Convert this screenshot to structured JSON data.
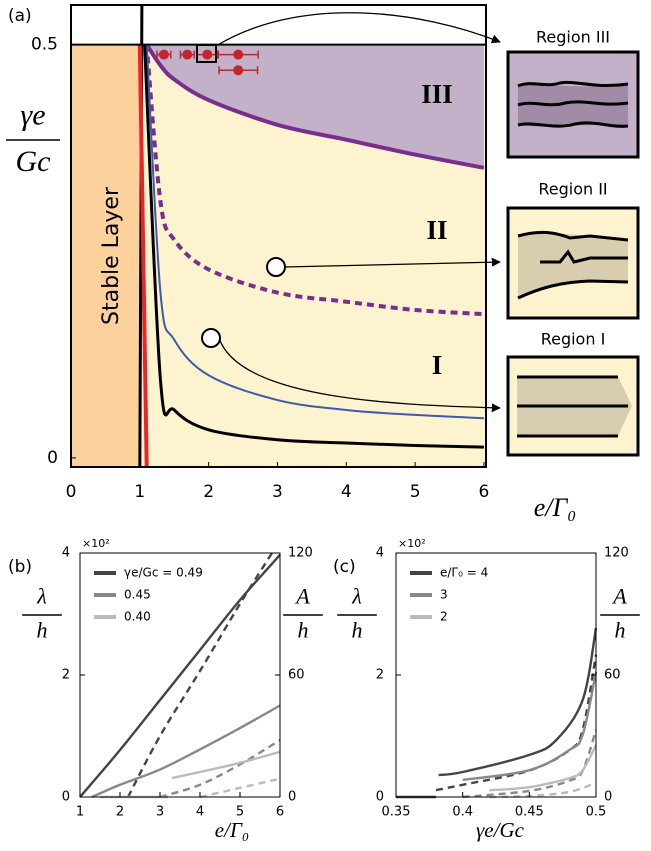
{
  "chart_data": [
    {
      "type": "line",
      "panel_label": "(a)",
      "xlabel": "e/Γ₀",
      "ylabel": [
        "γe",
        "Gc"
      ],
      "xlim": [
        0,
        6.03
      ],
      "ylim": [
        -0.011,
        0.548
      ],
      "xticks": [
        0,
        1,
        2,
        3,
        4,
        5,
        6
      ],
      "yticks": [
        0,
        0.5
      ],
      "stable_label": "Stable Layer",
      "region_labels": [
        "III",
        "II",
        "I"
      ],
      "insets": [
        "Region III",
        "Region II",
        "Region I"
      ],
      "fill_colors": {
        "stable": "#fdd19b",
        "cream": "#fef3cf",
        "region3": "#c3b1c9"
      },
      "series": [
        {
          "color": "#000000",
          "x": [
            1.03,
            1.0
          ],
          "values": [
            0.548,
            -0.011
          ]
        },
        {
          "color": "#e8262a",
          "x": [
            1.0,
            1.1
          ],
          "values": [
            0.5,
            -0.011
          ]
        },
        {
          "color": "#7b2d8e",
          "x": [
            1.1,
            1.3,
            1.5,
            2,
            3,
            4,
            5,
            6
          ],
          "values": [
            0.5,
            0.475,
            0.458,
            0.433,
            0.403,
            0.385,
            0.367,
            0.351
          ]
        },
        {
          "color": "#7b2d8e",
          "dash": true,
          "x": [
            1.1,
            1.3,
            1.5,
            2,
            3,
            4,
            5,
            6
          ],
          "values": [
            0.5,
            0.31,
            0.264,
            0.228,
            0.2,
            0.189,
            0.179,
            0.174
          ]
        },
        {
          "color": "#3c5ba8",
          "x": [
            1.1,
            1.3,
            1.5,
            2,
            3,
            4,
            5,
            6
          ],
          "values": [
            0.5,
            0.2,
            0.143,
            0.1,
            0.07,
            0.058,
            0.052,
            0.048
          ]
        },
        {
          "color": "#000000",
          "x": [
            1.07,
            1.3,
            1.5,
            2,
            3,
            4,
            5,
            6
          ],
          "values": [
            0.5,
            0.094,
            0.058,
            0.034,
            0.022,
            0.018,
            0.015,
            0.013
          ]
        }
      ],
      "points": {
        "color": "#c0262c",
        "x": [
          1.35,
          1.69,
          1.98,
          2.43,
          2.43
        ],
        "values": [
          0.488,
          0.488,
          0.488,
          0.488,
          0.469
        ],
        "xerr": [
          0.1,
          0.1,
          0.15,
          0.29,
          0.28
        ]
      }
    },
    {
      "type": "line",
      "panel_label": "(b)",
      "xlabel": "e/Γ₀",
      "ylabel": [
        "λ",
        "h"
      ],
      "y2label": [
        "A",
        "h"
      ],
      "y_multiplier": "×10²",
      "xlim": [
        1,
        6
      ],
      "ylim": [
        0,
        4
      ],
      "y2lim": [
        0,
        120
      ],
      "xticks": [
        1,
        2,
        3,
        4,
        5,
        6
      ],
      "yticks": [
        0,
        2,
        4
      ],
      "y2ticks": [
        0,
        60,
        120
      ],
      "series": [
        {
          "name": "γe/Gc = 0.49",
          "color": "#444444",
          "x": [
            1,
            2,
            3,
            4,
            5,
            6
          ],
          "values": [
            0,
            0.77,
            1.59,
            2.41,
            3.23,
            3.97
          ]
        },
        {
          "color": "#444444",
          "dash": true,
          "axis": "y2",
          "x": [
            2.2,
            3,
            4,
            5,
            5.8
          ],
          "values": [
            0,
            30,
            62,
            95,
            120
          ]
        },
        {
          "name": "0.45",
          "color": "#888888",
          "x": [
            1.3,
            2,
            3,
            4,
            5,
            6
          ],
          "values": [
            0,
            0.2,
            0.45,
            0.78,
            1.13,
            1.5
          ]
        },
        {
          "color": "#888888",
          "dash": true,
          "axis": "y2",
          "x": [
            3,
            4,
            5,
            6
          ],
          "values": [
            0,
            6,
            16,
            28
          ]
        },
        {
          "name": "0.40",
          "color": "#bbbbbb",
          "x": [
            1.5,
            3.2,
            3.25,
            3.3,
            4,
            5,
            6
          ],
          "values": [
            0,
            0,
            null,
            0.31,
            0.41,
            0.56,
            0.74
          ]
        },
        {
          "color": "#bbbbbb",
          "dash": true,
          "axis": "y2",
          "x": [
            4,
            5,
            6
          ],
          "values": [
            0,
            4.5,
            9
          ]
        }
      ]
    },
    {
      "type": "line",
      "panel_label": "(c)",
      "xlabel": "γe/Gc",
      "ylabel": [
        "λ",
        "h"
      ],
      "y2label": [
        "A",
        "h"
      ],
      "y_multiplier": "×10²",
      "xlim": [
        0.35,
        0.5
      ],
      "ylim": [
        0,
        4
      ],
      "y2lim": [
        0,
        120
      ],
      "xticks": [
        0.35,
        0.4,
        0.45,
        0.5
      ],
      "yticks": [
        0,
        2,
        4
      ],
      "y2ticks": [
        0,
        60,
        120
      ],
      "series": [
        {
          "name": "e/Γ₀ = 4",
          "color": "#444444",
          "x": [
            0.35,
            0.38,
            0.381,
            0.382,
            0.4,
            0.45,
            0.47,
            0.49,
            0.5
          ],
          "values": [
            0,
            0,
            null,
            0.36,
            0.41,
            0.69,
            0.93,
            1.59,
            2.77
          ]
        },
        {
          "color": "#444444",
          "dash": true,
          "axis": "y2",
          "x": [
            0.38,
            0.4,
            0.45,
            0.48,
            0.49,
            0.5
          ],
          "values": [
            3.4,
            6,
            13,
            23,
            33,
            70
          ]
        },
        {
          "name": "3",
          "color": "#888888",
          "x": [
            0.4,
            0.45,
            0.48,
            0.49,
            0.5
          ],
          "values": [
            0.28,
            0.44,
            0.77,
            1.02,
            2.05
          ]
        },
        {
          "color": "#888888",
          "dash": true,
          "axis": "y2",
          "x": [
            0.4,
            0.45,
            0.48,
            0.49,
            0.5
          ],
          "values": [
            0,
            3,
            8,
            13,
            33
          ]
        },
        {
          "name": "2",
          "color": "#bbbbbb",
          "x": [
            0.42,
            0.45,
            0.48,
            0.49,
            0.5
          ],
          "values": [
            0.11,
            0.16,
            0.31,
            0.44,
            0.85
          ]
        },
        {
          "color": "#bbbbbb",
          "dash": true,
          "axis": "y2",
          "x": [
            0.42,
            0.45,
            0.48,
            0.5
          ],
          "values": [
            0,
            0.5,
            2.5,
            7
          ]
        }
      ]
    }
  ]
}
